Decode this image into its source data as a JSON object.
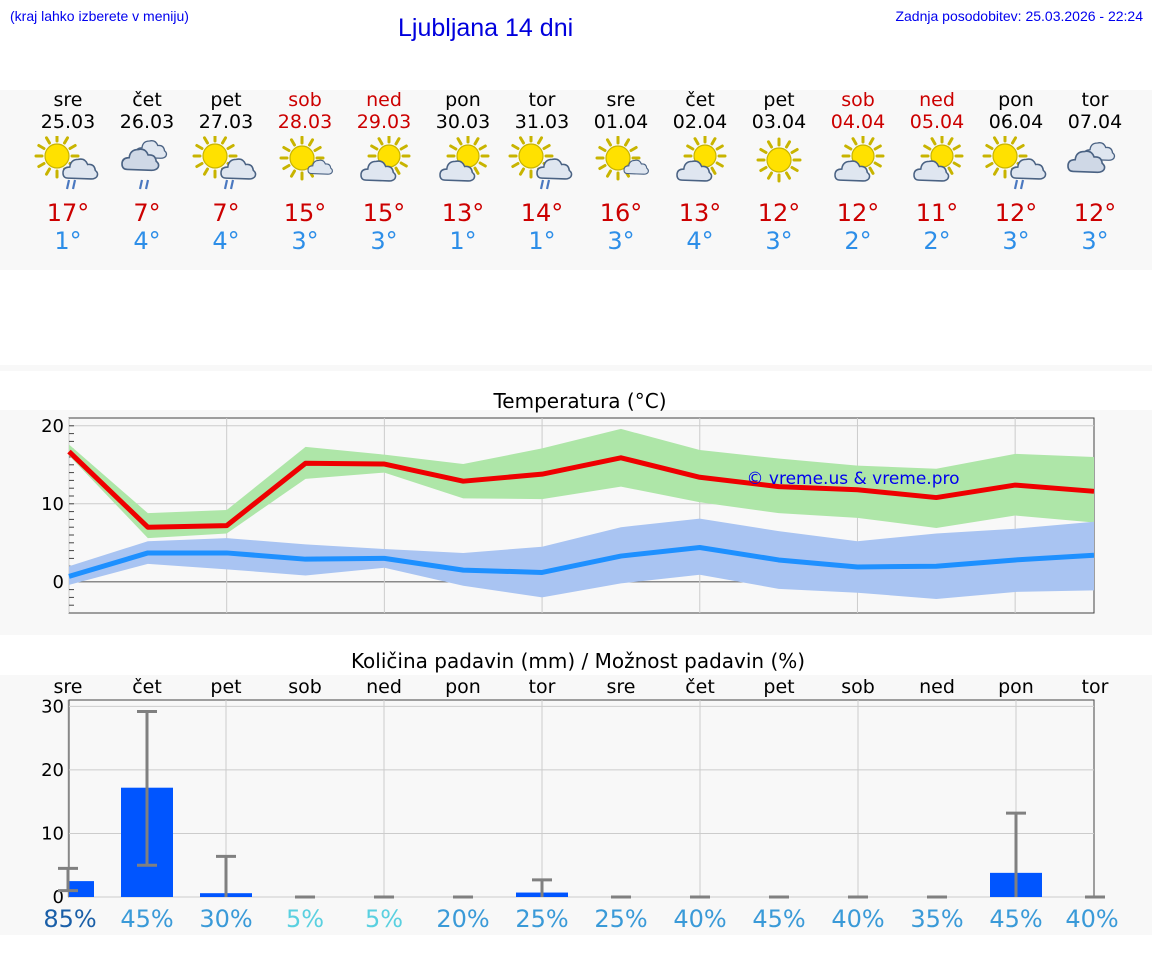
{
  "header": {
    "location_hint": "(kraj lahko izberete v meniju)",
    "title": "Ljubljana 14 dni",
    "updated": "Zadnja posodobitev: 25.03.2026 - 22:24"
  },
  "colors": {
    "title": "#0000dd",
    "weekend": "#cc0000",
    "tmax": "#cc0000",
    "tmin": "#2d8ee8",
    "bar": "#0055ff"
  },
  "days": [
    {
      "name": "sre",
      "date": "25.03",
      "weekend": false,
      "icon": "sun-cloud-rain-icon",
      "tmax": "17°",
      "tmin": "1°"
    },
    {
      "name": "čet",
      "date": "26.03",
      "weekend": false,
      "icon": "cloud-rain-icon",
      "tmax": "7°",
      "tmin": "4°"
    },
    {
      "name": "pet",
      "date": "27.03",
      "weekend": false,
      "icon": "sun-cloud-rain-icon",
      "tmax": "7°",
      "tmin": "4°"
    },
    {
      "name": "sob",
      "date": "28.03",
      "weekend": true,
      "icon": "sun-small-cloud-icon",
      "tmax": "15°",
      "tmin": "3°"
    },
    {
      "name": "ned",
      "date": "29.03",
      "weekend": true,
      "icon": "sun-cloud-icon",
      "tmax": "15°",
      "tmin": "3°"
    },
    {
      "name": "pon",
      "date": "30.03",
      "weekend": false,
      "icon": "sun-cloud-icon",
      "tmax": "13°",
      "tmin": "1°"
    },
    {
      "name": "tor",
      "date": "31.03",
      "weekend": false,
      "icon": "sun-cloud-rain-icon",
      "tmax": "14°",
      "tmin": "1°"
    },
    {
      "name": "sre",
      "date": "01.04",
      "weekend": false,
      "icon": "sun-small-cloud-icon",
      "tmax": "16°",
      "tmin": "3°"
    },
    {
      "name": "čet",
      "date": "02.04",
      "weekend": false,
      "icon": "sun-cloud-icon",
      "tmax": "13°",
      "tmin": "4°"
    },
    {
      "name": "pet",
      "date": "03.04",
      "weekend": false,
      "icon": "sun-icon",
      "tmax": "12°",
      "tmin": "3°"
    },
    {
      "name": "sob",
      "date": "04.04",
      "weekend": true,
      "icon": "sun-cloud-icon",
      "tmax": "12°",
      "tmin": "2°"
    },
    {
      "name": "ned",
      "date": "05.04",
      "weekend": true,
      "icon": "sun-cloud-icon",
      "tmax": "11°",
      "tmin": "2°"
    },
    {
      "name": "pon",
      "date": "06.04",
      "weekend": false,
      "icon": "sun-cloud-rain-icon",
      "tmax": "12°",
      "tmin": "3°"
    },
    {
      "name": "tor",
      "date": "07.04",
      "weekend": false,
      "icon": "cloud-icon",
      "tmax": "12°",
      "tmin": "3°"
    }
  ],
  "chart_data": [
    {
      "type": "line",
      "title": "Temperatura (°C)",
      "watermark": "© vreme.us & vreme.pro",
      "x": [
        0,
        1,
        2,
        3,
        4,
        5,
        6,
        7,
        8,
        9,
        10,
        11,
        12,
        13
      ],
      "ylim": [
        -4,
        21
      ],
      "yticks": [
        0,
        10,
        20
      ],
      "ytick_labels": [
        "0",
        "10",
        "20"
      ],
      "grid": true,
      "series": [
        {
          "name": "max",
          "color": "#ee0000",
          "values": [
            16.7,
            7.0,
            7.2,
            15.2,
            15.1,
            12.9,
            13.8,
            15.9,
            13.4,
            12.2,
            11.8,
            10.8,
            12.4,
            11.6
          ],
          "band_low": [
            16.2,
            5.6,
            6.2,
            13.2,
            14.0,
            10.7,
            10.6,
            12.2,
            10.2,
            8.8,
            8.2,
            6.9,
            8.5,
            7.6
          ],
          "band_high": [
            17.6,
            8.8,
            9.2,
            17.3,
            16.3,
            15.1,
            17.1,
            19.6,
            16.9,
            15.8,
            14.9,
            14.5,
            16.4,
            16.0
          ],
          "band_color": "#aee6a8"
        },
        {
          "name": "min",
          "color": "#1e90ff",
          "values": [
            0.7,
            3.7,
            3.7,
            2.9,
            3.0,
            1.5,
            1.2,
            3.3,
            4.4,
            2.8,
            1.9,
            2.0,
            2.8,
            3.4
          ],
          "band_low": [
            -0.4,
            2.3,
            1.6,
            0.8,
            1.8,
            -0.5,
            -2.0,
            -0.2,
            0.9,
            -0.9,
            -1.4,
            -2.2,
            -1.3,
            -1.1
          ],
          "band_high": [
            2.0,
            5.2,
            5.6,
            4.8,
            4.2,
            3.7,
            4.5,
            7.0,
            8.1,
            6.5,
            5.2,
            6.2,
            6.8,
            7.7
          ],
          "band_color": "#a9c4f2"
        }
      ]
    },
    {
      "type": "bar",
      "title": "Količina padavin (mm) / Možnost padavin (%)",
      "categories": [
        "sre",
        "čet",
        "pet",
        "sob",
        "ned",
        "pon",
        "tor",
        "sre",
        "čet",
        "pet",
        "sob",
        "ned",
        "pon",
        "tor"
      ],
      "values": [
        2.5,
        17.2,
        0.6,
        0,
        0,
        0,
        0.7,
        0,
        0,
        0,
        0,
        0,
        3.8,
        0
      ],
      "error_low": [
        1.0,
        5.0,
        0,
        0,
        0,
        0,
        0,
        0,
        0,
        0,
        0,
        0,
        0,
        0
      ],
      "error_high": [
        4.5,
        29.2,
        6.4,
        0,
        0,
        0,
        2.7,
        0,
        0,
        0,
        0,
        0,
        13.2,
        0
      ],
      "probability": [
        "85%",
        "45%",
        "30%",
        "5%",
        "5%",
        "20%",
        "25%",
        "25%",
        "40%",
        "45%",
        "40%",
        "35%",
        "45%",
        "40%"
      ],
      "probability_colors": [
        "#1a5fa8",
        "#3a9ad8",
        "#3a9ad8",
        "#5ad0e0",
        "#5ad0e0",
        "#3a9ad8",
        "#3a9ad8",
        "#3a9ad8",
        "#3a9ad8",
        "#3a9ad8",
        "#3a9ad8",
        "#3a9ad8",
        "#3a9ad8",
        "#3a9ad8"
      ],
      "ylim": [
        0,
        31
      ],
      "yticks": [
        0,
        10,
        20,
        30
      ],
      "ytick_labels": [
        "0",
        "10",
        "20",
        "30"
      ],
      "grid": true
    }
  ]
}
